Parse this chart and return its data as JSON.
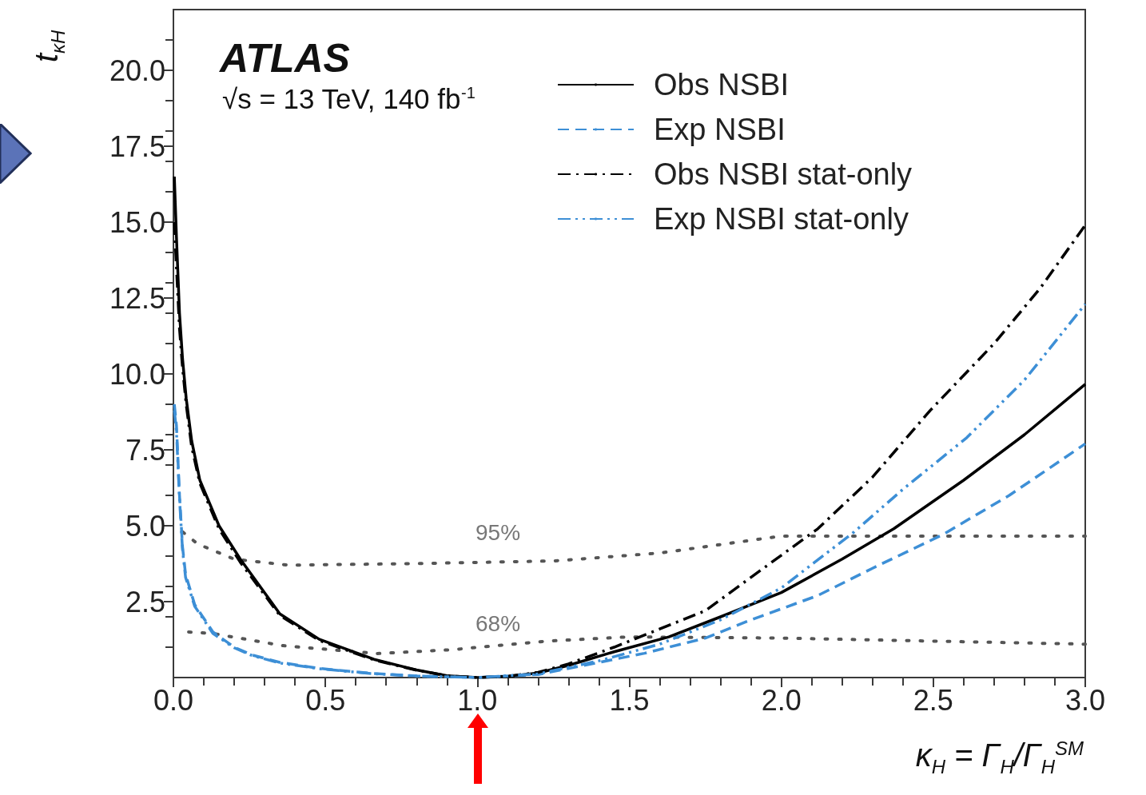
{
  "chart_data": {
    "type": "line",
    "xlabel": "κ$_{H}$ = Γ$_{H}$/Γ$_{H}$$^{SM}$",
    "ylabel": "t$_{κH}$",
    "annotations": [
      "ATLAS",
      "√s = 13 TeV, 140 fb$^{-1}$",
      "95%",
      "68%"
    ],
    "xlim": [
      0,
      3
    ],
    "ylim": [
      0,
      22
    ],
    "xticks": [
      {
        "value": 0,
        "label": "0.0"
      },
      {
        "value": 0.5,
        "label": "0.5"
      },
      {
        "value": 1,
        "label": "1.0"
      },
      {
        "value": 1.5,
        "label": "1.5"
      },
      {
        "value": 2,
        "label": "2.0"
      },
      {
        "value": 2.5,
        "label": "2.5"
      },
      {
        "value": 3,
        "label": "3.0"
      }
    ],
    "yticks": [
      2.5,
      {
        "value": 5,
        "label": "5.0"
      },
      7.5,
      {
        "value": 10,
        "label": "10.0"
      },
      12.5,
      {
        "value": 15,
        "label": "15.0"
      },
      17.5,
      {
        "value": 20,
        "label": "20.0"
      }
    ],
    "grid": false,
    "legend": "top right",
    "marker": "none",
    "series": [
      {
        "name": "Obs NSBI",
        "color": "#000000",
        "line_style": "solid",
        "x": [
          0.003,
          0.01,
          0.02,
          0.03,
          0.042,
          0.06,
          0.087,
          0.15,
          0.22,
          0.35,
          0.48,
          0.66,
          0.8,
          0.9,
          1.0,
          1.1,
          1.2,
          1.3,
          1.45,
          1.63,
          1.8,
          2.0,
          2.2,
          2.37,
          2.6,
          2.8,
          3.0
        ],
        "values": [
          16.5,
          14.5,
          12,
          10.5,
          9.2,
          7.8,
          6.5,
          5.0,
          3.9,
          2.1,
          1.26,
          0.6,
          0.25,
          0.06,
          0,
          0.03,
          0.15,
          0.4,
          0.85,
          1.34,
          2.0,
          2.8,
          3.9,
          4.9,
          6.5,
          8.0,
          9.66
        ]
      },
      {
        "name": "Exp NSBI",
        "color": "#3d8fd6",
        "line_style": "dashed",
        "x": [
          0.003,
          0.01,
          0.02,
          0.03,
          0.04,
          0.07,
          0.13,
          0.2,
          0.26,
          0.35,
          0.48,
          0.65,
          0.8,
          1.0,
          1.2,
          1.4,
          1.55,
          1.75,
          1.9,
          2.12,
          2.3,
          2.53,
          2.75,
          3.0
        ],
        "values": [
          9,
          8.3,
          6,
          4.3,
          3.4,
          2.4,
          1.5,
          1.0,
          0.74,
          0.5,
          0.3,
          0.14,
          0.05,
          0,
          0.1,
          0.5,
          0.8,
          1.3,
          1.9,
          2.7,
          3.6,
          4.7,
          6.0,
          7.7
        ]
      },
      {
        "name": "Obs NSBI stat-only",
        "color": "#000000",
        "line_style": "dashdot",
        "x": [
          0.003,
          0.01,
          0.02,
          0.03,
          0.042,
          0.06,
          0.087,
          0.15,
          0.22,
          0.35,
          0.48,
          0.66,
          0.8,
          0.9,
          1.0,
          1.1,
          1.2,
          1.3,
          1.45,
          1.6,
          1.75,
          1.9,
          2.12,
          2.3,
          2.49,
          2.7,
          2.85,
          3.0
        ],
        "values": [
          15,
          13.5,
          11.5,
          10.2,
          9.0,
          7.6,
          6.4,
          4.9,
          3.8,
          2.05,
          1.22,
          0.58,
          0.24,
          0.06,
          0,
          0.04,
          0.17,
          0.45,
          1.0,
          1.6,
          2.2,
          3.3,
          4.9,
          6.6,
          8.8,
          11.0,
          12.8,
          14.9
        ]
      },
      {
        "name": "Exp NSBI stat-only",
        "color": "#3d8fd6",
        "line_style": "dashdotdot",
        "x": [
          0.003,
          0.01,
          0.02,
          0.03,
          0.04,
          0.07,
          0.13,
          0.2,
          0.26,
          0.35,
          0.48,
          0.65,
          0.8,
          1.0,
          1.2,
          1.4,
          1.6,
          1.8,
          2.0,
          2.24,
          2.4,
          2.61,
          2.8,
          3.0
        ],
        "values": [
          8.8,
          8.1,
          5.9,
          4.2,
          3.3,
          2.35,
          1.45,
          0.98,
          0.72,
          0.48,
          0.29,
          0.13,
          0.05,
          0,
          0.12,
          0.55,
          1.1,
          1.9,
          2.95,
          4.8,
          6.2,
          7.9,
          9.8,
          12.3
        ]
      },
      {
        "color": "#555555",
        "line_style": "dotted",
        "x": [
          0.03,
          0.08,
          0.2,
          0.38,
          0.83,
          1.25,
          1.6,
          2.0,
          3.0
        ],
        "values": [
          4.8,
          4.4,
          3.9,
          3.7,
          3.76,
          3.84,
          4.1,
          4.66,
          4.66
        ]
      },
      {
        "color": "#555555",
        "line_style": "dotted",
        "x": [
          0.05,
          0.13,
          0.36,
          0.67,
          0.92,
          1.23,
          1.5,
          2.0,
          3.0
        ],
        "values": [
          1.5,
          1.45,
          1.05,
          0.79,
          0.92,
          1.2,
          1.34,
          1.3,
          1.1
        ]
      }
    ]
  }
}
